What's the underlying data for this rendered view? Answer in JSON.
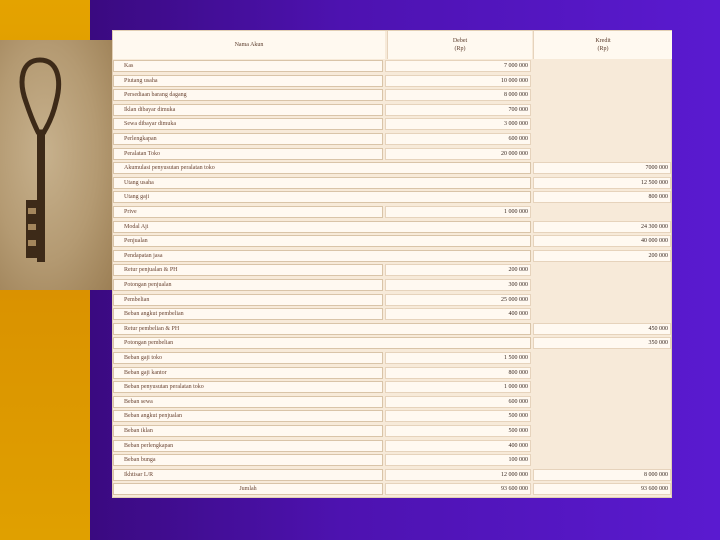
{
  "table": {
    "headers": {
      "name": "Nama Akun",
      "debit_line1": "Debet",
      "debit_line2": "(Rp)",
      "credit_line1": "Kredit",
      "credit_line2": "(Rp)"
    },
    "rows": [
      {
        "name": "Kas",
        "debit": "7 000 000",
        "credit": ""
      },
      {
        "name": "Piutang usaha",
        "debit": "10 000 000",
        "credit": ""
      },
      {
        "name": "Persediaan barang dagang",
        "debit": "8 000 000",
        "credit": ""
      },
      {
        "name": "Iklan dibayar dimuka",
        "debit": "700 000",
        "credit": ""
      },
      {
        "name": "Sewa dibayar dimuka",
        "debit": "3 000 000",
        "credit": ""
      },
      {
        "name": "Perlengkapan",
        "debit": "600 000",
        "credit": ""
      },
      {
        "name": "Peralatan Toko",
        "debit": "20 000 000",
        "credit": ""
      },
      {
        "name": "Akumulasi penyusutan peralatan toko",
        "debit": "",
        "credit": "7000 000"
      },
      {
        "name": "Utang usaha",
        "debit": "",
        "credit": "12 500 000"
      },
      {
        "name": "Utang gaji",
        "debit": "",
        "credit": "800 000"
      },
      {
        "name": "Prive",
        "debit": "1 000 000",
        "credit": ""
      },
      {
        "name": "Modal Aji",
        "debit": "",
        "credit": "24 300 000"
      },
      {
        "name": "Penjualan",
        "debit": "",
        "credit": "40 000 000"
      },
      {
        "name": "Pendapatan jasa",
        "debit": "",
        "credit": "200 000"
      },
      {
        "name": "Retur penjualan & PH",
        "debit": "200 000",
        "credit": ""
      },
      {
        "name": "Potongan penjualan",
        "debit": "300 000",
        "credit": ""
      },
      {
        "name": "Pembelian",
        "debit": "25 000 000",
        "credit": ""
      },
      {
        "name": "Beban angkut pembelian",
        "debit": "400 000",
        "credit": ""
      },
      {
        "name": "Retur pembelian & PH",
        "debit": "",
        "credit": "450 000"
      },
      {
        "name": "Potongan pembelian",
        "debit": "",
        "credit": "350 000"
      },
      {
        "name": "Beban gaji toko",
        "debit": "1 500 000",
        "credit": ""
      },
      {
        "name": "Beban gaji kantor",
        "debit": "800 000",
        "credit": ""
      },
      {
        "name": "Beban penyusutan peralatan toko",
        "debit": "1 000 000",
        "credit": ""
      },
      {
        "name": "Beban sewa",
        "debit": "600 000",
        "credit": ""
      },
      {
        "name": "Beban angkut penjualan",
        "debit": "500 000",
        "credit": ""
      },
      {
        "name": "Beban iklan",
        "debit": "500 000",
        "credit": ""
      },
      {
        "name": "Beban perlengkapan",
        "debit": "400 000",
        "credit": ""
      },
      {
        "name": "Beban bunga",
        "debit": "100 000",
        "credit": ""
      },
      {
        "name": "Ikhtisar L/R",
        "debit": "12 000 000",
        "credit": "8 000 000"
      }
    ],
    "total": {
      "name": "Jumlah",
      "debit": "93 600 000",
      "credit": "93 600 000"
    }
  }
}
